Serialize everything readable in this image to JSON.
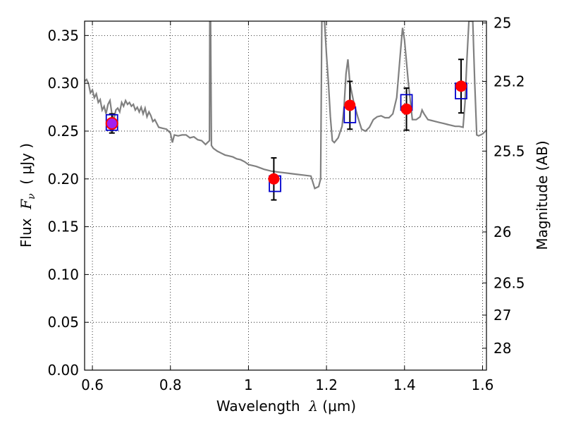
{
  "chart_data": {
    "type": "scatter",
    "xlabel": {
      "prefix": "Wavelength  ",
      "symbol": "λ",
      "unit": " (μm)"
    },
    "ylabel": {
      "prefix": "Flux  ",
      "symbol": "F",
      "subscript": "ν",
      "unit": "  ( μJy )"
    },
    "ylabel_right": "Magnitude (AB)",
    "xlim": [
      0.58,
      1.61
    ],
    "ylim": [
      0.0,
      0.365
    ],
    "x_ticks": [
      {
        "value": 0.6,
        "label": "0.6"
      },
      {
        "value": 0.8,
        "label": "0.8"
      },
      {
        "value": 1.0,
        "label": "1"
      },
      {
        "value": 1.2,
        "label": "1.2"
      },
      {
        "value": 1.4,
        "label": "1.4"
      },
      {
        "value": 1.6,
        "label": "1.6"
      }
    ],
    "y_ticks": [
      {
        "value": 0.0,
        "label": "0.00"
      },
      {
        "value": 0.05,
        "label": "0.05"
      },
      {
        "value": 0.1,
        "label": "0.10"
      },
      {
        "value": 0.15,
        "label": "0.15"
      },
      {
        "value": 0.2,
        "label": "0.20"
      },
      {
        "value": 0.25,
        "label": "0.25"
      },
      {
        "value": 0.3,
        "label": "0.30"
      },
      {
        "value": 0.35,
        "label": "0.35"
      }
    ],
    "right_ticks": [
      {
        "mag": 25.0,
        "label": "25"
      },
      {
        "mag": 25.2,
        "label": "25.2"
      },
      {
        "mag": 25.5,
        "label": "25.5"
      },
      {
        "mag": 26.0,
        "label": "26"
      },
      {
        "mag": 26.5,
        "label": "26.5"
      },
      {
        "mag": 27.0,
        "label": "27"
      },
      {
        "mag": 28.0,
        "label": "28"
      }
    ],
    "grid": true,
    "colors": {
      "model": "#808080",
      "observed": "#ff0000",
      "model_box": "#0000cc",
      "error_bar": "#000000",
      "first_point": "#a020f0"
    },
    "observed": [
      {
        "x": 0.65,
        "y": 0.258,
        "yerr": 0.01
      },
      {
        "x": 1.065,
        "y": 0.2,
        "yerr": 0.022
      },
      {
        "x": 1.26,
        "y": 0.277,
        "yerr": 0.025
      },
      {
        "x": 1.405,
        "y": 0.273,
        "yerr": 0.022
      },
      {
        "x": 1.545,
        "y": 0.297,
        "yerr": 0.028
      }
    ],
    "model_photometry": [
      {
        "x": 0.65,
        "y": 0.259
      },
      {
        "x": 1.068,
        "y": 0.195
      },
      {
        "x": 1.26,
        "y": 0.267
      },
      {
        "x": 1.405,
        "y": 0.28
      },
      {
        "x": 1.545,
        "y": 0.292
      }
    ],
    "model_spectrum": [
      [
        0.58,
        0.302
      ],
      [
        0.585,
        0.304
      ],
      [
        0.59,
        0.3
      ],
      [
        0.595,
        0.29
      ],
      [
        0.6,
        0.293
      ],
      [
        0.605,
        0.285
      ],
      [
        0.61,
        0.289
      ],
      [
        0.615,
        0.28
      ],
      [
        0.62,
        0.283
      ],
      [
        0.625,
        0.272
      ],
      [
        0.63,
        0.276
      ],
      [
        0.635,
        0.268
      ],
      [
        0.64,
        0.278
      ],
      [
        0.645,
        0.282
      ],
      [
        0.65,
        0.268
      ],
      [
        0.655,
        0.262
      ],
      [
        0.66,
        0.272
      ],
      [
        0.665,
        0.274
      ],
      [
        0.67,
        0.27
      ],
      [
        0.675,
        0.28
      ],
      [
        0.68,
        0.276
      ],
      [
        0.685,
        0.282
      ],
      [
        0.69,
        0.278
      ],
      [
        0.695,
        0.28
      ],
      [
        0.7,
        0.276
      ],
      [
        0.705,
        0.278
      ],
      [
        0.71,
        0.272
      ],
      [
        0.715,
        0.275
      ],
      [
        0.72,
        0.27
      ],
      [
        0.725,
        0.275
      ],
      [
        0.73,
        0.268
      ],
      [
        0.735,
        0.274
      ],
      [
        0.74,
        0.265
      ],
      [
        0.745,
        0.27
      ],
      [
        0.75,
        0.266
      ],
      [
        0.755,
        0.26
      ],
      [
        0.76,
        0.262
      ],
      [
        0.765,
        0.258
      ],
      [
        0.77,
        0.254
      ],
      [
        0.78,
        0.253
      ],
      [
        0.79,
        0.252
      ],
      [
        0.8,
        0.248
      ],
      [
        0.805,
        0.238
      ],
      [
        0.81,
        0.246
      ],
      [
        0.82,
        0.245
      ],
      [
        0.83,
        0.246
      ],
      [
        0.84,
        0.246
      ],
      [
        0.85,
        0.243
      ],
      [
        0.86,
        0.244
      ],
      [
        0.87,
        0.241
      ],
      [
        0.88,
        0.24
      ],
      [
        0.89,
        0.236
      ],
      [
        0.895,
        0.238
      ],
      [
        0.9,
        0.24
      ],
      [
        0.901,
        0.365
      ],
      [
        0.903,
        0.365
      ],
      [
        0.905,
        0.235
      ],
      [
        0.91,
        0.232
      ],
      [
        0.92,
        0.229
      ],
      [
        0.93,
        0.227
      ],
      [
        0.94,
        0.225
      ],
      [
        0.95,
        0.224
      ],
      [
        0.96,
        0.223
      ],
      [
        0.97,
        0.221
      ],
      [
        0.98,
        0.22
      ],
      [
        0.99,
        0.218
      ],
      [
        1.0,
        0.215
      ],
      [
        1.02,
        0.213
      ],
      [
        1.04,
        0.21
      ],
      [
        1.06,
        0.208
      ],
      [
        1.08,
        0.207
      ],
      [
        1.1,
        0.206
      ],
      [
        1.12,
        0.205
      ],
      [
        1.14,
        0.204
      ],
      [
        1.16,
        0.203
      ],
      [
        1.17,
        0.19
      ],
      [
        1.18,
        0.192
      ],
      [
        1.185,
        0.2
      ],
      [
        1.188,
        0.365
      ],
      [
        1.195,
        0.365
      ],
      [
        1.2,
        0.33
      ],
      [
        1.205,
        0.3
      ],
      [
        1.21,
        0.265
      ],
      [
        1.215,
        0.24
      ],
      [
        1.22,
        0.238
      ],
      [
        1.23,
        0.243
      ],
      [
        1.24,
        0.255
      ],
      [
        1.245,
        0.275
      ],
      [
        1.25,
        0.31
      ],
      [
        1.255,
        0.325
      ],
      [
        1.26,
        0.3
      ],
      [
        1.27,
        0.28
      ],
      [
        1.28,
        0.265
      ],
      [
        1.29,
        0.252
      ],
      [
        1.3,
        0.25
      ],
      [
        1.31,
        0.254
      ],
      [
        1.32,
        0.262
      ],
      [
        1.33,
        0.265
      ],
      [
        1.34,
        0.266
      ],
      [
        1.35,
        0.264
      ],
      [
        1.36,
        0.264
      ],
      [
        1.37,
        0.268
      ],
      [
        1.38,
        0.285
      ],
      [
        1.39,
        0.335
      ],
      [
        1.395,
        0.358
      ],
      [
        1.4,
        0.345
      ],
      [
        1.41,
        0.3
      ],
      [
        1.42,
        0.262
      ],
      [
        1.43,
        0.262
      ],
      [
        1.44,
        0.265
      ],
      [
        1.445,
        0.272
      ],
      [
        1.45,
        0.268
      ],
      [
        1.46,
        0.262
      ],
      [
        1.47,
        0.261
      ],
      [
        1.48,
        0.26
      ],
      [
        1.49,
        0.259
      ],
      [
        1.5,
        0.258
      ],
      [
        1.51,
        0.257
      ],
      [
        1.52,
        0.256
      ],
      [
        1.53,
        0.255
      ],
      [
        1.54,
        0.255
      ],
      [
        1.55,
        0.254
      ],
      [
        1.555,
        0.28
      ],
      [
        1.56,
        0.325
      ],
      [
        1.565,
        0.365
      ],
      [
        1.575,
        0.365
      ],
      [
        1.58,
        0.3
      ],
      [
        1.585,
        0.246
      ],
      [
        1.59,
        0.245
      ],
      [
        1.6,
        0.247
      ],
      [
        1.61,
        0.251
      ]
    ]
  }
}
